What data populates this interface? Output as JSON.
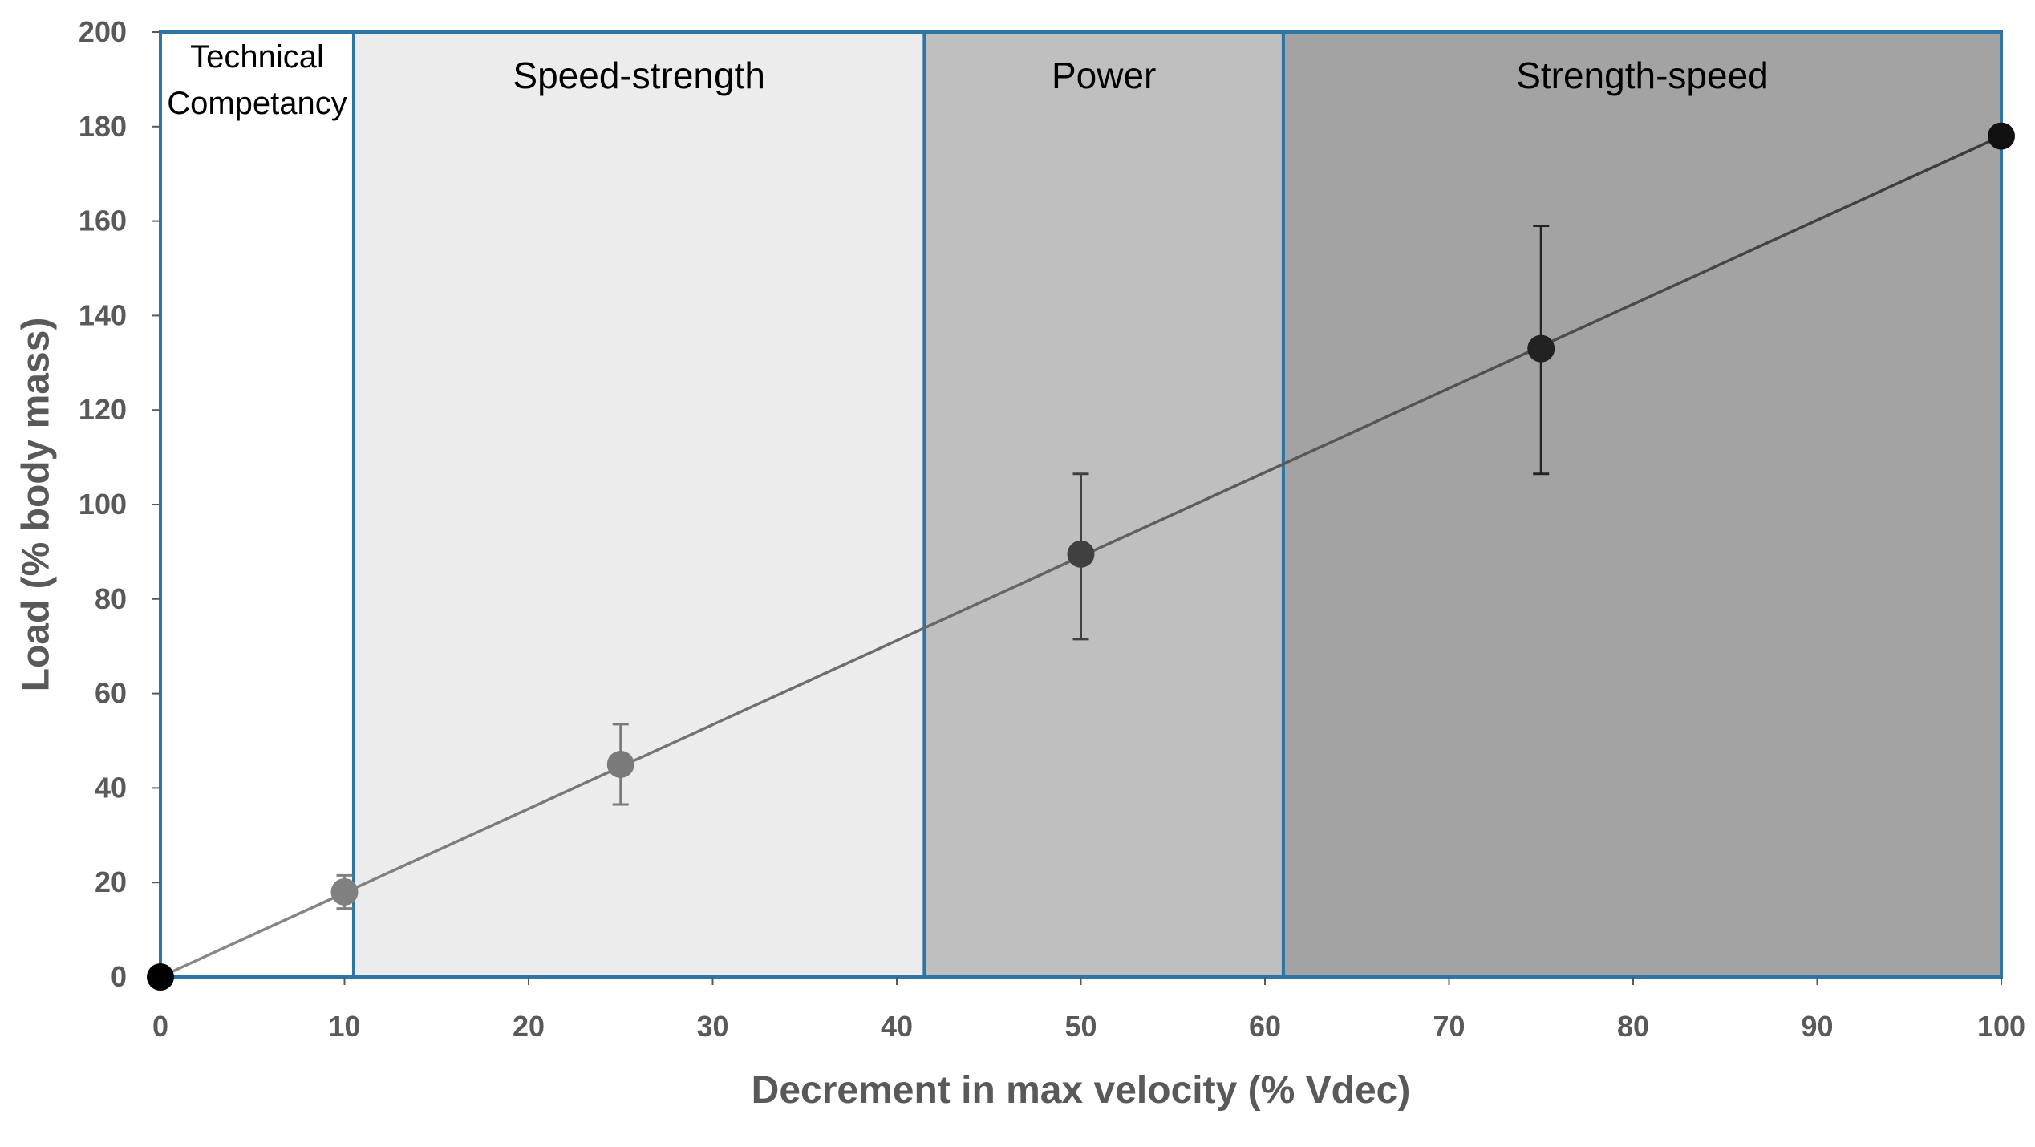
{
  "chart_data": {
    "type": "scatter",
    "title": "",
    "xlabel": "Decrement in max velocity (% Vdec)",
    "ylabel": "Load (% body mass)",
    "xlim": [
      0,
      100
    ],
    "ylim": [
      0,
      200
    ],
    "x_ticks": [
      0,
      10,
      20,
      30,
      40,
      50,
      60,
      70,
      80,
      90,
      100
    ],
    "y_ticks": [
      0,
      20,
      40,
      60,
      80,
      100,
      120,
      140,
      160,
      180,
      200
    ],
    "grid": false,
    "zones": [
      {
        "label_lines": [
          "Technical",
          "Competancy"
        ],
        "x_start": 0,
        "x_end": 10.5,
        "fill": "#ffffff"
      },
      {
        "label_lines": [
          "Speed-strength"
        ],
        "x_start": 10.5,
        "x_end": 41.5,
        "fill": "#ececec"
      },
      {
        "label_lines": [
          "Power"
        ],
        "x_start": 41.5,
        "x_end": 61,
        "fill": "#bfbfbf"
      },
      {
        "label_lines": [
          "Strength-speed"
        ],
        "x_start": 61,
        "x_end": 100,
        "fill": "#a3a3a3"
      }
    ],
    "zone_border_color": "#2e75a6",
    "trend_line": {
      "x": [
        0,
        100
      ],
      "y": [
        0,
        178
      ],
      "color": "#3a3a3a"
    },
    "points": [
      {
        "x": 0,
        "y": 0,
        "err_low": 0,
        "err_high": 0,
        "color": "#000000"
      },
      {
        "x": 10,
        "y": 18,
        "err_low": 3.5,
        "err_high": 3.5,
        "color": "#808080"
      },
      {
        "x": 25,
        "y": 45,
        "err_low": 8.5,
        "err_high": 8.5,
        "color": "#7a7a7a"
      },
      {
        "x": 50,
        "y": 89.5,
        "err_low": 18,
        "err_high": 17,
        "color": "#404040"
      },
      {
        "x": 75,
        "y": 133,
        "err_low": 26.5,
        "err_high": 26,
        "color": "#222222"
      },
      {
        "x": 100,
        "y": 178,
        "err_low": 0,
        "err_high": 0,
        "color": "#111111"
      }
    ]
  }
}
